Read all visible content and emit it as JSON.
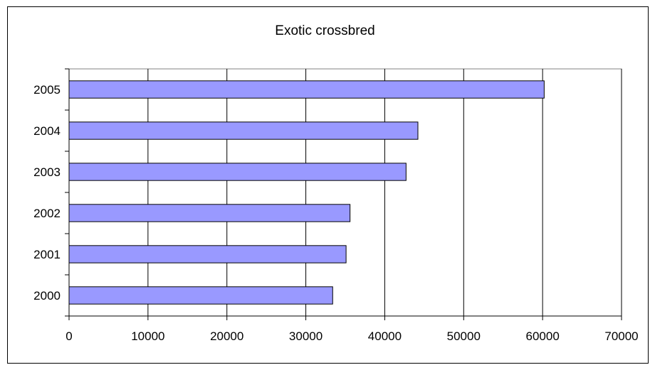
{
  "chart_data": {
    "type": "bar",
    "orientation": "horizontal",
    "title": "Exotic crossbred",
    "xlabel": "",
    "ylabel": "",
    "categories": [
      "2000",
      "2001",
      "2002",
      "2003",
      "2004",
      "2005"
    ],
    "values": [
      33400,
      35100,
      35600,
      42700,
      44200,
      60200
    ],
    "xlim": [
      0,
      70000
    ],
    "x_ticks": [
      "0",
      "10000",
      "20000",
      "30000",
      "40000",
      "50000",
      "60000",
      "70000"
    ],
    "grid": "vertical",
    "legend": "none",
    "colors": {
      "bar_fill": "#9999ff",
      "bar_stroke": "#000000",
      "grid": "#000000",
      "plot_border": "#808080"
    }
  }
}
